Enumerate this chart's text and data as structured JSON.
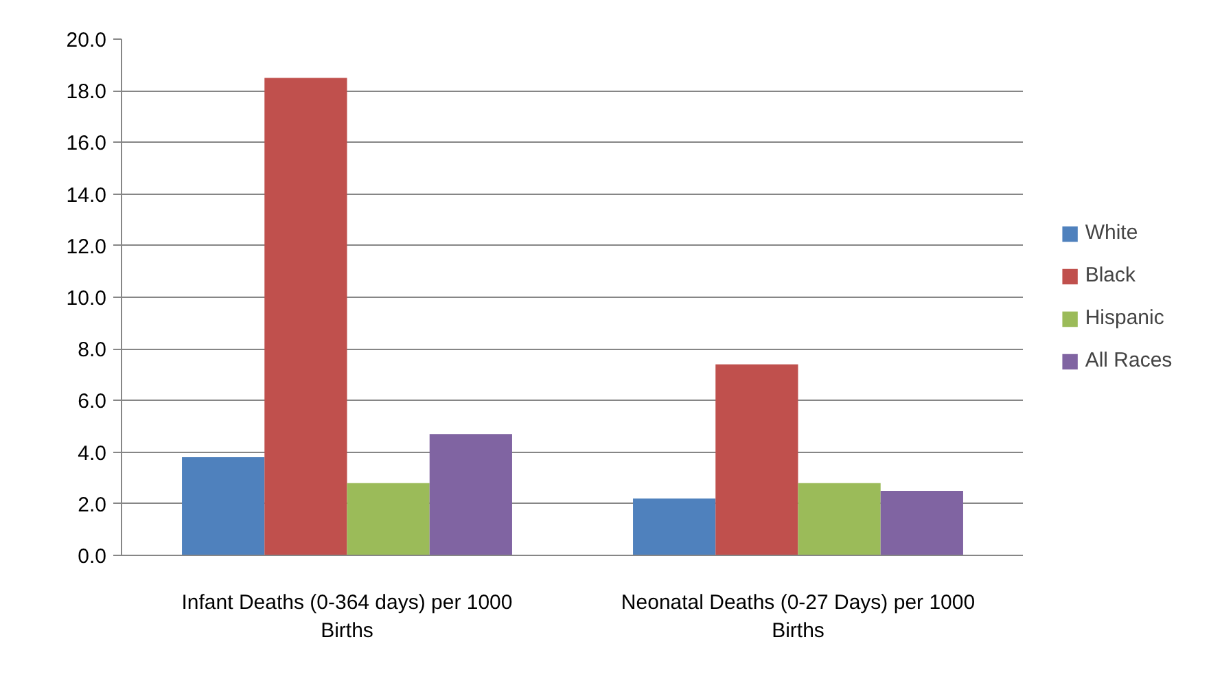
{
  "chart_data": {
    "type": "bar",
    "categories": [
      "Infant Deaths (0-364 days) per 1000 Births",
      "Neonatal Deaths (0-27 Days) per 1000 Births"
    ],
    "series": [
      {
        "name": "White",
        "color": "#4f81bd",
        "values": [
          3.8,
          2.2
        ]
      },
      {
        "name": "Black",
        "color": "#c0504d",
        "values": [
          18.5,
          7.4
        ]
      },
      {
        "name": "Hispanic",
        "color": "#9bbb59",
        "values": [
          2.8,
          2.8
        ]
      },
      {
        "name": "All Races",
        "color": "#8064a2",
        "values": [
          4.7,
          2.5
        ]
      }
    ],
    "ylim": [
      0,
      20
    ],
    "yticks": [
      {
        "value": 0,
        "label": "0.0"
      },
      {
        "value": 2,
        "label": "2.0"
      },
      {
        "value": 4,
        "label": "4.0"
      },
      {
        "value": 6,
        "label": "6.0"
      },
      {
        "value": 8,
        "label": "8.0"
      },
      {
        "value": 10,
        "label": "10.0"
      },
      {
        "value": 12,
        "label": "12.0"
      },
      {
        "value": 14,
        "label": "14.0"
      },
      {
        "value": 16,
        "label": "16.0"
      },
      {
        "value": 18,
        "label": "18.0"
      },
      {
        "value": 20,
        "label": "20.0"
      }
    ],
    "grid": "y",
    "legend": "right"
  }
}
